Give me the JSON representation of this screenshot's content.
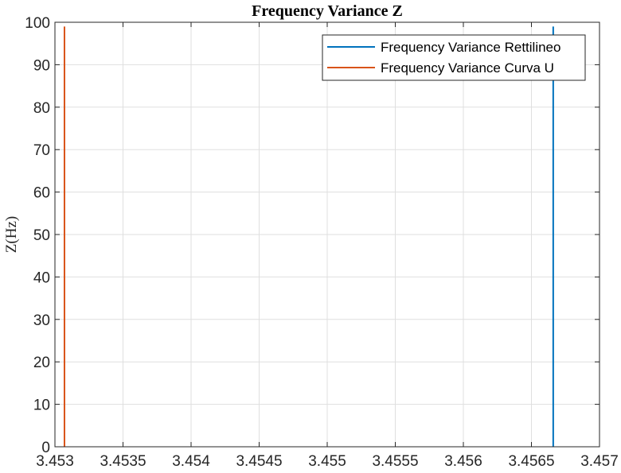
{
  "chart_data": {
    "type": "line",
    "title": "Frequency Variance Z",
    "xlabel": "",
    "ylabel": "Z(Hz)",
    "xlim": [
      3.453,
      3.457
    ],
    "ylim": [
      0,
      100
    ],
    "grid": true,
    "legend_position": "top-right",
    "xticks": [
      "3.453",
      "3.4535",
      "3.454",
      "3.4545",
      "3.455",
      "3.4555",
      "3.456",
      "3.4565",
      "3.457"
    ],
    "yticks": [
      "0",
      "10",
      "20",
      "30",
      "40",
      "50",
      "60",
      "70",
      "80",
      "90",
      "100"
    ],
    "series": [
      {
        "name": "Frequency Variance Rettilineo",
        "color": "#0072BD",
        "x": [
          3.45666,
          3.45666
        ],
        "y": [
          0,
          99
        ]
      },
      {
        "name": "Frequency Variance Curva U",
        "color": "#D95319",
        "x": [
          3.45307,
          3.45307
        ],
        "y": [
          0,
          99
        ]
      }
    ]
  }
}
